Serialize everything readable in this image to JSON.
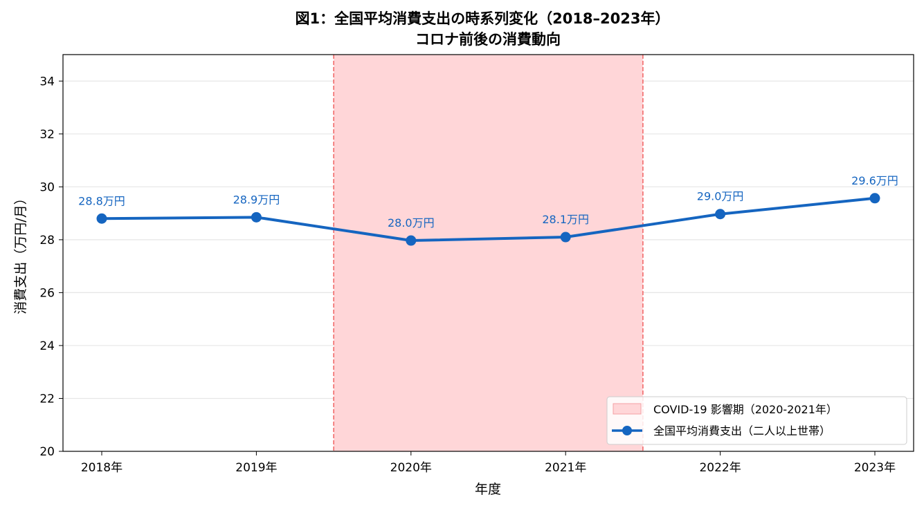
{
  "chart_data": {
    "type": "line",
    "title": "図1：全国平均消費支出の時系列変化（2018–2023年）",
    "subtitle": "コロナ前後の消費動向",
    "xlabel": "年度",
    "ylabel": "消費支出（万円/月）",
    "categories": [
      "2018年",
      "2019年",
      "2020年",
      "2021年",
      "2022年",
      "2023年"
    ],
    "series": [
      {
        "name": "全国平均消費支出（二人以上世帯）",
        "values": [
          28.8,
          28.85,
          27.97,
          28.1,
          28.97,
          29.57
        ],
        "labels": [
          "28.8万円",
          "28.9万円",
          "28.0万円",
          "28.1万円",
          "29.0万円",
          "29.6万円"
        ],
        "color": "#1565c0"
      }
    ],
    "ylim": [
      20,
      35
    ],
    "yticks": [
      "20",
      "22",
      "24",
      "26",
      "28",
      "30",
      "32",
      "34"
    ],
    "grid": "horizontal",
    "shaded_region": {
      "label": "COVID-19 影響期（2020-2021年）",
      "from_index": 1.5,
      "to_index": 3.5,
      "fill": "#ffd6d8",
      "line": "#f06060"
    },
    "legend_position": "lower-right"
  }
}
